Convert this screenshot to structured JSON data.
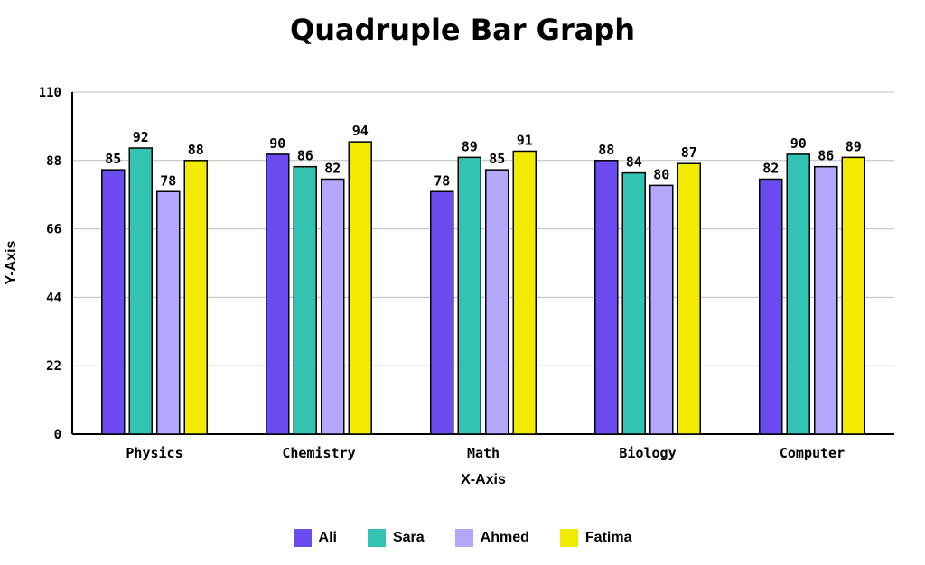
{
  "chart_data": {
    "type": "bar",
    "title": "Quadruple Bar Graph",
    "xlabel": "X-Axis",
    "ylabel": "Y-Axis",
    "ylim": [
      0,
      110
    ],
    "yticks": [
      0,
      22,
      44,
      66,
      88,
      110
    ],
    "grid": true,
    "legend_position": "bottom",
    "categories": [
      "Physics",
      "Chemistry",
      "Math",
      "Biology",
      "Computer"
    ],
    "series": [
      {
        "name": "Ali",
        "color": "#6c4cf0",
        "values": [
          85,
          90,
          78,
          88,
          82
        ]
      },
      {
        "name": "Sara",
        "color": "#33c3b3",
        "values": [
          92,
          86,
          89,
          84,
          90
        ]
      },
      {
        "name": "Ahmed",
        "color": "#b3a8fc",
        "values": [
          78,
          82,
          85,
          80,
          86
        ]
      },
      {
        "name": "Fatima",
        "color": "#f2ea00",
        "values": [
          88,
          94,
          91,
          87,
          89
        ]
      }
    ]
  }
}
